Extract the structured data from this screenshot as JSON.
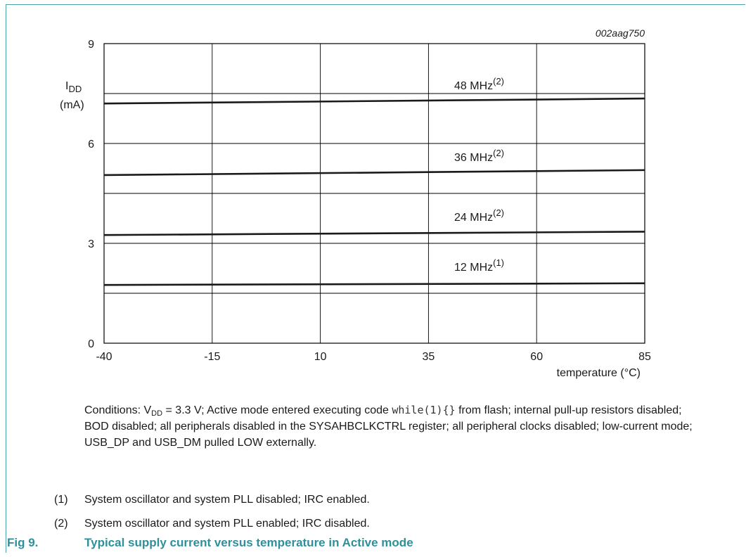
{
  "figure": {
    "id": "002aag750",
    "number_label": "Fig 9.",
    "caption": "Typical supply current versus temperature in Active mode"
  },
  "conditions": {
    "prefix": "Conditions: V",
    "sub": "DD",
    "after_sub": " = 3.3 V; Active mode entered executing code ",
    "code": "while(1){}",
    "rest": " from flash; internal pull-up resistors disabled; BOD disabled; all peripherals disabled in the SYSAHBCLKCTRL register; all peripheral clocks disabled; low-current mode; USB_DP and USB_DM pulled LOW externally."
  },
  "notes": [
    {
      "num": "(1)",
      "text": "System oscillator and system PLL disabled; IRC enabled."
    },
    {
      "num": "(2)",
      "text": "System oscillator and system PLL enabled; IRC disabled."
    }
  ],
  "colors": {
    "accent": "#2f8f9a",
    "frame": "#4aa3a8",
    "line": "#1a1a1a",
    "grid": "#000000"
  },
  "chart_data": {
    "type": "line",
    "xlabel": "temperature (°C)",
    "ylabel_main": "I",
    "ylabel_sub": "DD",
    "ylabel_unit": "(mA)",
    "xlim": [
      -40,
      85
    ],
    "ylim": [
      0,
      9
    ],
    "xticks": [
      -40,
      -15,
      10,
      35,
      60,
      85
    ],
    "yticks": [
      0,
      3,
      6,
      9
    ],
    "y_gridlines": [
      1.5,
      3,
      4.5,
      6,
      7.5,
      9
    ],
    "grid": true,
    "x": [
      -40,
      85
    ],
    "series": [
      {
        "name": "48 MHz",
        "note": "(2)",
        "values": [
          7.2,
          7.35
        ]
      },
      {
        "name": "36 MHz",
        "note": "(2)",
        "values": [
          5.05,
          5.2
        ]
      },
      {
        "name": "24 MHz",
        "note": "(2)",
        "values": [
          3.25,
          3.35
        ]
      },
      {
        "name": "12 MHz",
        "note": "(1)",
        "values": [
          1.75,
          1.8
        ]
      }
    ]
  }
}
